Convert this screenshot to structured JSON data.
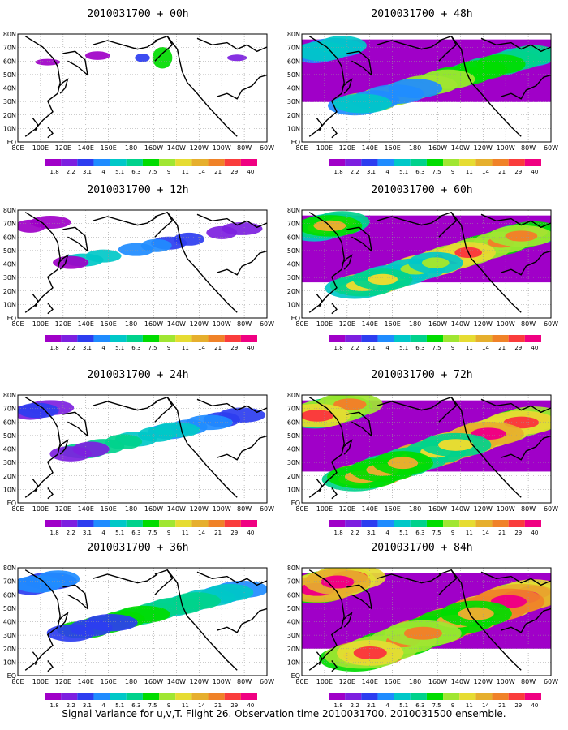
{
  "footer": "Signal Variance for u,v,T. Flight 26. Observation time 2010031700. 2010031500 ensemble.",
  "lon_labels": [
    "80E",
    "100E",
    "120E",
    "140E",
    "160E",
    "180",
    "160W",
    "140W",
    "120W",
    "100W",
    "80W",
    "60W"
  ],
  "lat_labels": [
    "80N",
    "70N",
    "60N",
    "50N",
    "40N",
    "30N",
    "20N",
    "10N",
    "EQ"
  ],
  "colorbar": {
    "labels": [
      "1.8",
      "2.2",
      "3.1",
      "4",
      "5.1",
      "6.3",
      "7.5",
      "9",
      "11",
      "14",
      "21",
      "29",
      "40"
    ],
    "colors": [
      "#a000c8",
      "#7d1fe0",
      "#2d3df0",
      "#1f8cff",
      "#00c8c8",
      "#00d28c",
      "#00dc00",
      "#a0e632",
      "#e6dc32",
      "#e6af2d",
      "#f08228",
      "#fa3c3c",
      "#f00082"
    ]
  },
  "panels": [
    {
      "title": "2010031700 + 00h",
      "intensity": 0
    },
    {
      "title": "2010031700 + 12h",
      "intensity": 1
    },
    {
      "title": "2010031700 + 24h",
      "intensity": 2
    },
    {
      "title": "2010031700 + 36h",
      "intensity": 3
    },
    {
      "title": "2010031700 + 48h",
      "intensity": 4
    },
    {
      "title": "2010031700 + 60h",
      "intensity": 5
    },
    {
      "title": "2010031700 + 72h",
      "intensity": 6
    },
    {
      "title": "2010031700 + 84h",
      "intensity": 7
    }
  ]
}
